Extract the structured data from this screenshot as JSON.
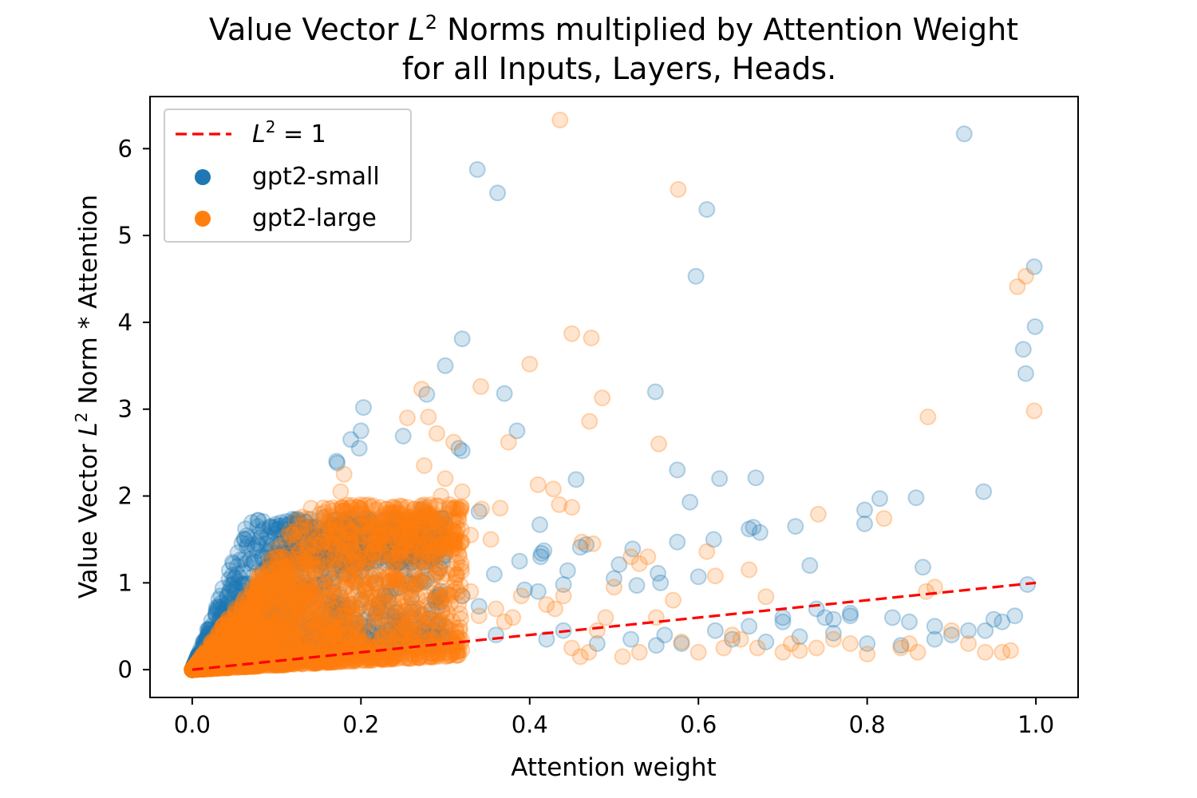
{
  "chart_data": {
    "type": "scatter",
    "title_line1_prefix": "Value Vector ",
    "title_line1_var": "L",
    "title_line1_sup": "2",
    "title_line1_suffix": " Norms multiplied by Attention Weight",
    "title_line2": "for all Inputs, Layers, Heads.",
    "xlabel": "Attention weight",
    "ylabel_prefix": "Value Vector ",
    "ylabel_var": "L",
    "ylabel_sup": "2",
    "ylabel_suffix": " Norm * Attention",
    "xlim": [
      -0.05,
      1.05
    ],
    "ylim": [
      -0.32,
      6.6
    ],
    "x_ticks": [
      0.0,
      0.2,
      0.4,
      0.6,
      0.8,
      1.0
    ],
    "x_tick_labels": [
      "0.0",
      "0.2",
      "0.4",
      "0.6",
      "0.8",
      "1.0"
    ],
    "y_ticks": [
      0,
      1,
      2,
      3,
      4,
      5,
      6
    ],
    "y_tick_labels": [
      "0",
      "1",
      "2",
      "3",
      "4",
      "5",
      "6"
    ],
    "grid": false,
    "legend_position": "top-left",
    "reference_line": {
      "label_var": "L",
      "label_sup": "2",
      "label_rest": " = 1",
      "style": "dashed",
      "color": "#ff0000",
      "x": [
        0.0,
        1.0
      ],
      "y": [
        0.0,
        1.0
      ]
    },
    "series": [
      {
        "name": "gpt2-small",
        "color": "#1f77b4",
        "x": [
          0.915,
          0.338,
          0.362,
          0.61,
          0.597,
          0.998,
          0.999,
          0.985,
          0.988,
          0.32,
          0.3,
          0.278,
          0.37,
          0.385,
          0.549,
          0.203,
          0.2,
          0.188,
          0.198,
          0.25,
          0.316,
          0.32,
          0.171,
          0.172,
          0.34,
          0.455,
          0.575,
          0.625,
          0.668,
          0.59,
          0.938,
          0.858,
          0.815,
          0.797,
          0.797,
          0.273,
          0.412,
          0.417,
          0.414,
          0.413,
          0.467,
          0.46,
          0.358,
          0.388,
          0.506,
          0.522,
          0.552,
          0.575,
          0.618,
          0.66,
          0.665,
          0.673,
          0.715,
          0.732,
          0.866,
          0.6,
          0.555,
          0.5,
          0.527,
          0.445,
          0.44,
          0.41,
          0.394,
          0.32,
          0.34,
          0.295,
          0.262,
          0.228,
          0.222,
          0.18,
          0.15,
          0.128,
          0.11,
          0.09,
          0.083,
          0.1,
          0.05,
          0.03,
          0.06,
          0.04,
          0.08,
          0.7,
          0.75,
          0.78,
          0.83,
          0.85,
          0.88,
          0.92,
          0.95,
          0.96,
          0.975,
          0.99,
          0.74,
          0.7,
          0.66,
          0.62,
          0.56,
          0.52,
          0.48,
          0.44,
          0.42,
          0.36,
          0.3,
          0.26,
          0.24,
          0.55,
          0.58,
          0.64,
          0.68,
          0.72,
          0.76,
          0.8,
          0.84,
          0.88,
          0.9,
          0.94,
          0.76,
          0.78
        ],
        "y": [
          6.17,
          5.76,
          5.49,
          5.3,
          4.53,
          4.64,
          3.95,
          3.69,
          3.41,
          3.81,
          3.5,
          3.17,
          3.18,
          2.75,
          3.2,
          3.02,
          2.75,
          2.65,
          2.55,
          2.69,
          2.55,
          2.52,
          2.4,
          2.38,
          1.82,
          2.19,
          2.3,
          2.2,
          2.21,
          1.93,
          2.05,
          1.98,
          1.97,
          1.84,
          1.68,
          1.85,
          1.67,
          1.37,
          1.34,
          1.3,
          1.44,
          1.41,
          1.1,
          1.25,
          1.21,
          1.39,
          1.11,
          1.47,
          1.5,
          1.62,
          1.64,
          1.58,
          1.65,
          1.2,
          1.18,
          1.07,
          1.0,
          1.05,
          0.97,
          1.14,
          0.98,
          0.9,
          0.92,
          0.85,
          0.73,
          0.78,
          0.7,
          0.85,
          0.78,
          1.1,
          1.2,
          1.5,
          1.4,
          1.2,
          1.3,
          1.65,
          0.6,
          0.4,
          0.7,
          0.55,
          0.9,
          0.55,
          0.6,
          0.65,
          0.6,
          0.55,
          0.5,
          0.45,
          0.58,
          0.55,
          0.62,
          0.98,
          0.7,
          0.6,
          0.5,
          0.45,
          0.4,
          0.35,
          0.3,
          0.45,
          0.35,
          0.4,
          0.5,
          0.6,
          0.55,
          0.28,
          0.3,
          0.35,
          0.32,
          0.38,
          0.42,
          0.3,
          0.28,
          0.35,
          0.4,
          0.45,
          0.58,
          0.62
        ],
        "cluster": {
          "count": 1600,
          "x_range": [
            0.0,
            0.3
          ],
          "min_slope": 1.0,
          "max_slope": 26.0,
          "y_cap": 1.75
        }
      },
      {
        "name": "gpt2-large",
        "color": "#ff7f0e",
        "x": [
          0.436,
          0.576,
          0.978,
          0.988,
          0.998,
          0.45,
          0.473,
          0.4,
          0.342,
          0.486,
          0.471,
          0.872,
          0.272,
          0.28,
          0.29,
          0.31,
          0.255,
          0.275,
          0.375,
          0.553,
          0.41,
          0.428,
          0.435,
          0.45,
          0.32,
          0.343,
          0.365,
          0.295,
          0.3,
          0.305,
          0.742,
          0.82,
          0.2,
          0.18,
          0.176,
          0.23,
          0.24,
          0.26,
          0.31,
          0.354,
          0.33,
          0.22,
          0.23,
          0.21,
          0.19,
          0.462,
          0.475,
          0.52,
          0.53,
          0.54,
          0.62,
          0.61,
          0.66,
          0.68,
          0.9,
          0.88,
          0.87,
          0.92,
          0.86,
          0.84,
          0.78,
          0.72,
          0.7,
          0.65,
          0.63,
          0.58,
          0.55,
          0.5,
          0.48,
          0.44,
          0.42,
          0.38,
          0.36,
          0.34,
          0.28,
          0.26,
          0.24,
          0.94,
          0.96,
          0.97,
          0.85,
          0.8,
          0.76,
          0.74,
          0.71,
          0.67,
          0.64,
          0.6,
          0.57,
          0.53,
          0.51,
          0.47,
          0.46,
          0.45,
          0.49,
          0.43,
          0.39,
          0.37,
          0.33,
          0.3
        ],
        "y": [
          6.33,
          5.53,
          4.41,
          4.53,
          2.98,
          3.87,
          3.82,
          3.52,
          3.26,
          3.13,
          2.86,
          2.91,
          3.23,
          2.91,
          2.72,
          2.62,
          2.9,
          2.35,
          2.62,
          2.6,
          2.13,
          2.08,
          1.9,
          1.87,
          2.05,
          1.85,
          1.86,
          2.0,
          2.2,
          1.9,
          1.79,
          1.74,
          1.85,
          2.25,
          2.05,
          1.8,
          1.75,
          1.72,
          1.6,
          1.5,
          1.55,
          1.45,
          1.3,
          1.25,
          1.38,
          1.47,
          1.45,
          1.3,
          1.22,
          1.3,
          1.08,
          1.36,
          1.15,
          0.84,
          0.45,
          0.95,
          0.9,
          0.3,
          0.2,
          0.25,
          0.3,
          0.22,
          0.2,
          0.35,
          0.25,
          0.32,
          0.6,
          0.95,
          0.45,
          0.85,
          0.75,
          0.6,
          0.7,
          0.62,
          0.75,
          0.8,
          1.0,
          0.2,
          0.2,
          0.22,
          0.3,
          0.18,
          0.35,
          0.25,
          0.3,
          0.25,
          0.4,
          0.2,
          0.8,
          0.2,
          0.15,
          0.2,
          0.15,
          0.25,
          0.6,
          0.7,
          0.85,
          0.55,
          0.9,
          0.5
        ],
        "cluster": {
          "count": 2800,
          "x_range": [
            0.0,
            0.32
          ],
          "min_slope": 0.5,
          "max_slope": 14.0,
          "y_cap": 1.9
        }
      }
    ]
  }
}
